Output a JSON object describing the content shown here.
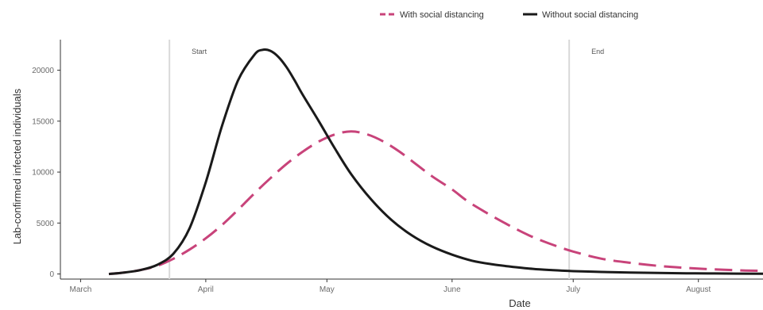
{
  "chart_data": {
    "type": "line",
    "xlabel": "Date",
    "ylabel": "Lab-confirmed infected individuals",
    "x_ticks": [
      "March",
      "April",
      "May",
      "June",
      "July",
      "August"
    ],
    "x_tick_dates": [
      "2020-03-01",
      "2020-04-01",
      "2020-05-01",
      "2020-06-01",
      "2020-07-01",
      "2020-08-01"
    ],
    "xlim": [
      "2020-02-25",
      "2020-08-17"
    ],
    "y_ticks": [
      "0",
      "5000",
      "10000",
      "15000",
      "20000"
    ],
    "ylim": [
      -500,
      23000
    ],
    "grid": false,
    "legend_position": "top-right",
    "colors": {
      "with": "#c8437a",
      "without": "#1a1a1a",
      "vline": "#d9d9d9",
      "axis": "#333333"
    },
    "annotations": [
      {
        "date": "2020-03-23",
        "label": "Start"
      },
      {
        "date": "2020-06-30",
        "label": "End"
      }
    ],
    "series": [
      {
        "name": "With social distancing",
        "style": "dashed",
        "x": [
          "2020-03-08",
          "2020-03-12",
          "2020-03-16",
          "2020-03-20",
          "2020-03-24",
          "2020-03-28",
          "2020-04-01",
          "2020-04-05",
          "2020-04-09",
          "2020-04-13",
          "2020-04-17",
          "2020-04-21",
          "2020-04-25",
          "2020-04-29",
          "2020-05-03",
          "2020-05-07",
          "2020-05-11",
          "2020-05-15",
          "2020-05-19",
          "2020-05-23",
          "2020-05-27",
          "2020-06-01",
          "2020-06-05",
          "2020-06-10",
          "2020-06-15",
          "2020-06-20",
          "2020-06-25",
          "2020-07-01",
          "2020-07-08",
          "2020-07-15",
          "2020-07-22",
          "2020-07-29",
          "2020-08-05",
          "2020-08-12",
          "2020-08-17"
        ],
        "y": [
          0,
          150,
          400,
          800,
          1500,
          2400,
          3500,
          4800,
          6300,
          7900,
          9400,
          10800,
          12000,
          13000,
          13700,
          14000,
          13700,
          13000,
          12000,
          10800,
          9600,
          8300,
          7100,
          5900,
          4800,
          3800,
          3000,
          2200,
          1500,
          1100,
          800,
          600,
          450,
          350,
          300
        ]
      },
      {
        "name": "Without social distancing",
        "style": "solid",
        "x": [
          "2020-03-08",
          "2020-03-12",
          "2020-03-16",
          "2020-03-20",
          "2020-03-24",
          "2020-03-28",
          "2020-04-01",
          "2020-04-05",
          "2020-04-09",
          "2020-04-13",
          "2020-04-15",
          "2020-04-17",
          "2020-04-19",
          "2020-04-21",
          "2020-04-23",
          "2020-04-25",
          "2020-04-29",
          "2020-05-03",
          "2020-05-07",
          "2020-05-12",
          "2020-05-17",
          "2020-05-22",
          "2020-05-27",
          "2020-06-01",
          "2020-06-06",
          "2020-06-11",
          "2020-06-16",
          "2020-06-21",
          "2020-06-26",
          "2020-07-01",
          "2020-07-08",
          "2020-07-15",
          "2020-07-22",
          "2020-07-29",
          "2020-08-05",
          "2020-08-17"
        ],
        "y": [
          0,
          150,
          400,
          900,
          2000,
          4500,
          9000,
          14500,
          19000,
          21500,
          22000,
          21900,
          21300,
          20300,
          19000,
          17600,
          15000,
          12300,
          9800,
          7300,
          5300,
          3800,
          2700,
          1900,
          1300,
          950,
          700,
          500,
          370,
          280,
          200,
          140,
          100,
          70,
          50,
          20
        ]
      }
    ]
  }
}
